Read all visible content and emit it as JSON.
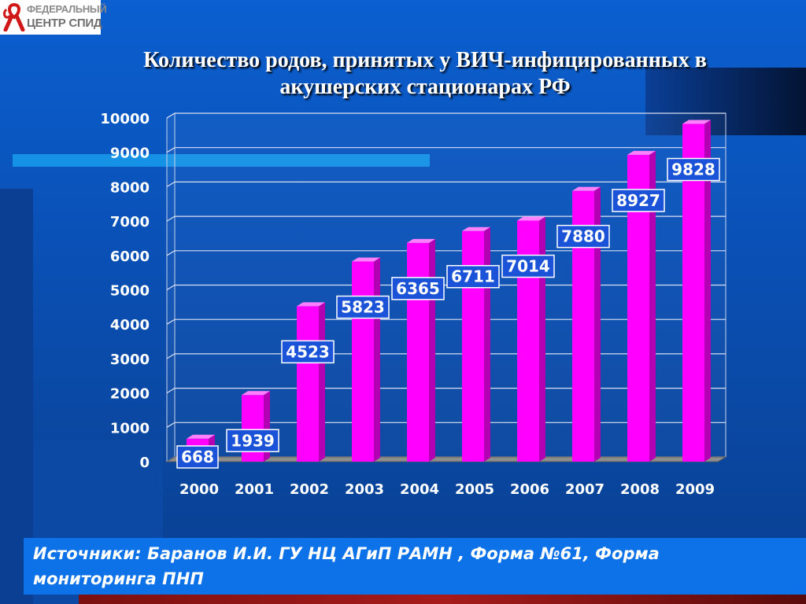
{
  "logo": {
    "line1": "ФЕДЕРАЛЬНЫЙ",
    "line2": "ЦЕНТР СПИД",
    "icon": "red-ribbon-icon"
  },
  "slide_title_line1": "Количество родов, принятых у ВИЧ-инфицированных в",
  "slide_title_line2": "акушерских стационарах РФ",
  "source_text": "Источники: Баранов И.И. ГУ НЦ АГиП РАМН , Форма №61, Форма мониторинга ПНП",
  "colors": {
    "bar": "#ff00ff",
    "label_box": "#1a52d8",
    "grid": "#ffffff"
  },
  "chart_data": {
    "type": "bar",
    "title": "",
    "xlabel": "",
    "ylabel": "",
    "categories": [
      "2000",
      "2001",
      "2002",
      "2003",
      "2004",
      "2005",
      "2006",
      "2007",
      "2008",
      "2009"
    ],
    "values": [
      668,
      1939,
      4523,
      5823,
      6365,
      6711,
      7014,
      7880,
      8927,
      9828
    ],
    "ylim": [
      0,
      10000
    ],
    "yticks": [
      "0",
      "1000",
      "2000",
      "3000",
      "4000",
      "5000",
      "6000",
      "7000",
      "8000",
      "9000",
      "10000"
    ],
    "grid": true,
    "legend": "none",
    "style": "3d"
  }
}
